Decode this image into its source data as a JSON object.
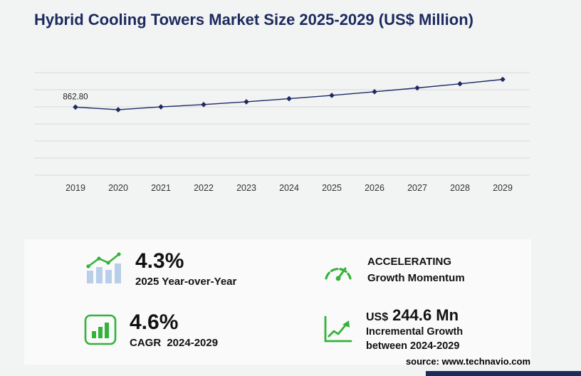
{
  "title": "Hybrid Cooling Towers Market Size 2025-2029 (US$ Million)",
  "chart_data": {
    "type": "line",
    "title": "Hybrid Cooling Towers Market Size 2025-2029 (US$ Million)",
    "categories": [
      "2019",
      "2020",
      "2021",
      "2022",
      "2023",
      "2024",
      "2025",
      "2026",
      "2027",
      "2028",
      "2029"
    ],
    "values": [
      862.8,
      830.0,
      866.0,
      895.0,
      930.0,
      969.6,
      1011.3,
      1057.5,
      1105.9,
      1158.1,
      1214.2
    ],
    "first_point_label": "862.80",
    "xlabel": "",
    "ylabel": "US$ Million",
    "ylim": [
      0,
      1300
    ],
    "grid": "horizontal",
    "legend": "none",
    "line_color": "#1e2a63",
    "marker": "diamond"
  },
  "stats": {
    "yoy": {
      "value": "4.3%",
      "label": "2025 Year-over-Year"
    },
    "momentum": {
      "line1": "ACCELERATING",
      "line2": "Growth Momentum"
    },
    "cagr": {
      "value": "4.6%",
      "label_prefix": "CAGR",
      "label_period": "2024-2029"
    },
    "incremental": {
      "currency": "US$",
      "value": "244.6 Mn",
      "line1": "Incremental Growth",
      "line2": "between 2024-2029"
    }
  },
  "source": "source: www.technavio.com",
  "colors": {
    "accent_green": "#33b33a",
    "navy": "#1c2a5e",
    "bar_blue": "#b9cfe9",
    "grid": "#d9d9d9"
  }
}
